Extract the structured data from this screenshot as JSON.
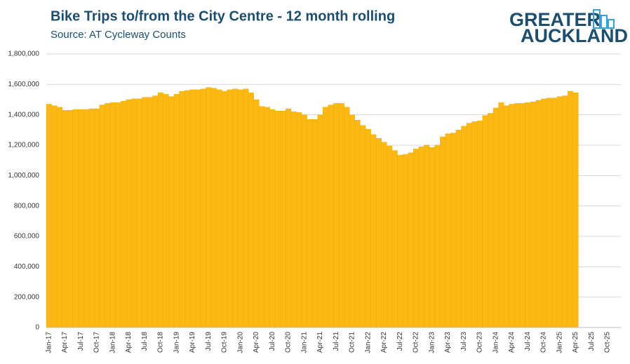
{
  "chart_data": {
    "type": "bar",
    "title": "Bike Trips to/from the City Centre - 12 month rolling",
    "subtitle": "Source: AT Cycleway Counts",
    "color": "#fdb913",
    "grid": true,
    "ylim": [
      0,
      1800000
    ],
    "yticks": [
      0,
      {
        "value": 200000,
        "label": "200,000"
      },
      {
        "value": 400000,
        "label": "400,000"
      },
      {
        "value": 600000,
        "label": "600,000"
      },
      {
        "value": 800000,
        "label": "800,000"
      },
      {
        "value": 1000000,
        "label": "1,000,000"
      },
      {
        "value": 1200000,
        "label": "1,200,000"
      },
      {
        "value": 1400000,
        "label": "1,400,000"
      },
      {
        "value": 1600000,
        "label": "1,600,000"
      },
      {
        "value": 1800000,
        "label": "1,800,000"
      }
    ],
    "categories": [
      "Jan-17",
      null,
      null,
      "Apr-17",
      null,
      null,
      "Jul-17",
      null,
      null,
      "Oct-17",
      null,
      null,
      "Jan-18",
      null,
      null,
      "Apr-18",
      null,
      null,
      "Jul-18",
      null,
      null,
      "Oct-18",
      null,
      null,
      "Jan-19",
      null,
      null,
      "Apr-19",
      null,
      null,
      "Jul-19",
      null,
      null,
      "Oct-19",
      null,
      null,
      "Jan-20",
      null,
      null,
      "Apr-20",
      null,
      null,
      "Jul-20",
      null,
      null,
      "Oct-20",
      null,
      null,
      "Jan-21",
      null,
      null,
      "Apr-21",
      null,
      null,
      "Jul-21",
      null,
      null,
      "Oct-21",
      null,
      null,
      "Jan-22",
      null,
      null,
      "Apr-22",
      null,
      null,
      "Jul-22",
      null,
      null,
      "Oct-22",
      null,
      null,
      "Jan-23",
      null,
      null,
      "Apr-23",
      null,
      null,
      "Jul-23",
      null,
      null,
      "Oct-23",
      null,
      null,
      "Jan-24",
      null,
      null,
      "Apr-24",
      null,
      null,
      "Jul-24",
      null,
      null,
      "Oct-24",
      null,
      null,
      "Jan-25",
      null,
      null,
      "Apr-25",
      null,
      null,
      "Jul-25",
      null,
      null,
      "Oct-25",
      null,
      null
    ],
    "values": [
      1470000,
      1460000,
      1450000,
      1430000,
      1430000,
      1435000,
      1435000,
      1435000,
      1440000,
      1440000,
      1465000,
      1475000,
      1480000,
      1480000,
      1490000,
      1500000,
      1505000,
      1505000,
      1515000,
      1515000,
      1525000,
      1545000,
      1535000,
      1520000,
      1535000,
      1555000,
      1560000,
      1565000,
      1565000,
      1570000,
      1580000,
      1575000,
      1565000,
      1555000,
      1565000,
      1570000,
      1565000,
      1570000,
      1545000,
      1500000,
      1455000,
      1450000,
      1435000,
      1425000,
      1425000,
      1440000,
      1420000,
      1415000,
      1400000,
      1370000,
      1370000,
      1400000,
      1450000,
      1465000,
      1475000,
      1475000,
      1450000,
      1400000,
      1365000,
      1330000,
      1305000,
      1270000,
      1245000,
      1220000,
      1195000,
      1165000,
      1135000,
      1140000,
      1150000,
      1175000,
      1190000,
      1200000,
      1185000,
      1200000,
      1255000,
      1275000,
      1280000,
      1300000,
      1325000,
      1345000,
      1355000,
      1360000,
      1395000,
      1410000,
      1445000,
      1480000,
      1460000,
      1470000,
      1475000,
      1475000,
      1480000,
      1485000,
      1495000,
      1505000,
      1510000,
      1510000,
      1520000,
      1525000,
      1555000,
      1545000,
      null,
      null,
      null,
      null,
      null,
      null,
      null,
      null
    ]
  },
  "logo": {
    "line1": "GREATER",
    "line2": "AUCKLAND"
  }
}
